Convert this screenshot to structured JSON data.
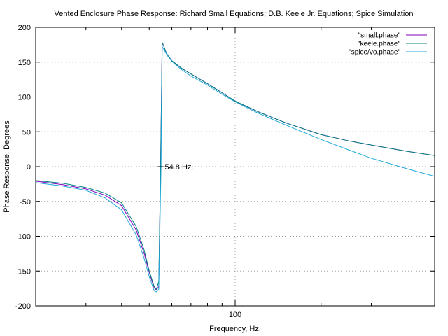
{
  "chart_data": {
    "type": "line",
    "title": "Vented Enclosure Phase Response: Richard Small Equations; D.B. Keele Jr. Equations; Spice Simulation",
    "xlabel": "Frequency, Hz.",
    "ylabel": "Phase Response, Degrees",
    "xscale": "log",
    "xlim": [
      20,
      500
    ],
    "ylim": [
      -200,
      200
    ],
    "x_ticks": [
      {
        "value": 100,
        "label": "100"
      }
    ],
    "y_ticks": [
      -200,
      -150,
      -100,
      -50,
      0,
      50,
      100,
      150,
      200
    ],
    "grid": "dotted major gridlines",
    "legend_position": "top-right",
    "annotation": {
      "x": 54.8,
      "y": 0,
      "text": "54.8 Hz."
    },
    "series": [
      {
        "name": "\"small.phase\"",
        "color": "#8000c0",
        "x": [
          20,
          25,
          30,
          35,
          40,
          45,
          48,
          50,
          52,
          53,
          54,
          54.8,
          55.5,
          56,
          57,
          58,
          60,
          65,
          70,
          80,
          90,
          100,
          120,
          150,
          200,
          250,
          300,
          400,
          500
        ],
        "y": [
          -21,
          -26,
          -32,
          -41,
          -56,
          -91,
          -125,
          -152,
          -174,
          -177,
          -172,
          0,
          178,
          175,
          166,
          160,
          152,
          141,
          133,
          119,
          106,
          94,
          79,
          63,
          46,
          37,
          31,
          22,
          16
        ]
      },
      {
        "name": "\"keele.phase\"",
        "color": "#008080",
        "x": [
          20,
          25,
          30,
          35,
          40,
          45,
          48,
          50,
          52,
          53,
          54,
          54.8,
          55.5,
          56,
          57,
          58,
          60,
          65,
          70,
          80,
          90,
          100,
          120,
          150,
          200,
          250,
          300,
          400,
          500
        ],
        "y": [
          -20,
          -24,
          -30,
          -38,
          -52,
          -86,
          -120,
          -150,
          -172,
          -176,
          -165,
          0,
          178,
          175,
          166,
          160,
          152,
          141,
          133,
          119,
          106,
          94,
          79,
          63,
          46,
          37,
          31,
          22,
          16
        ]
      },
      {
        "name": "\"spice/vo.phase\"",
        "color": "#20a8d8",
        "x": [
          20,
          25,
          30,
          35,
          40,
          45,
          48,
          50,
          52,
          53,
          54,
          55,
          55.5,
          56,
          57,
          58,
          60,
          65,
          70,
          80,
          90,
          100,
          120,
          150,
          200,
          250,
          300,
          400,
          500
        ],
        "y": [
          -23,
          -28,
          -34,
          -45,
          -62,
          -98,
          -132,
          -158,
          -178,
          -180,
          -176,
          0,
          172,
          170,
          164,
          159,
          151,
          139,
          130,
          117,
          104,
          93,
          77,
          60,
          39,
          24,
          12,
          -3,
          -14
        ]
      }
    ]
  }
}
